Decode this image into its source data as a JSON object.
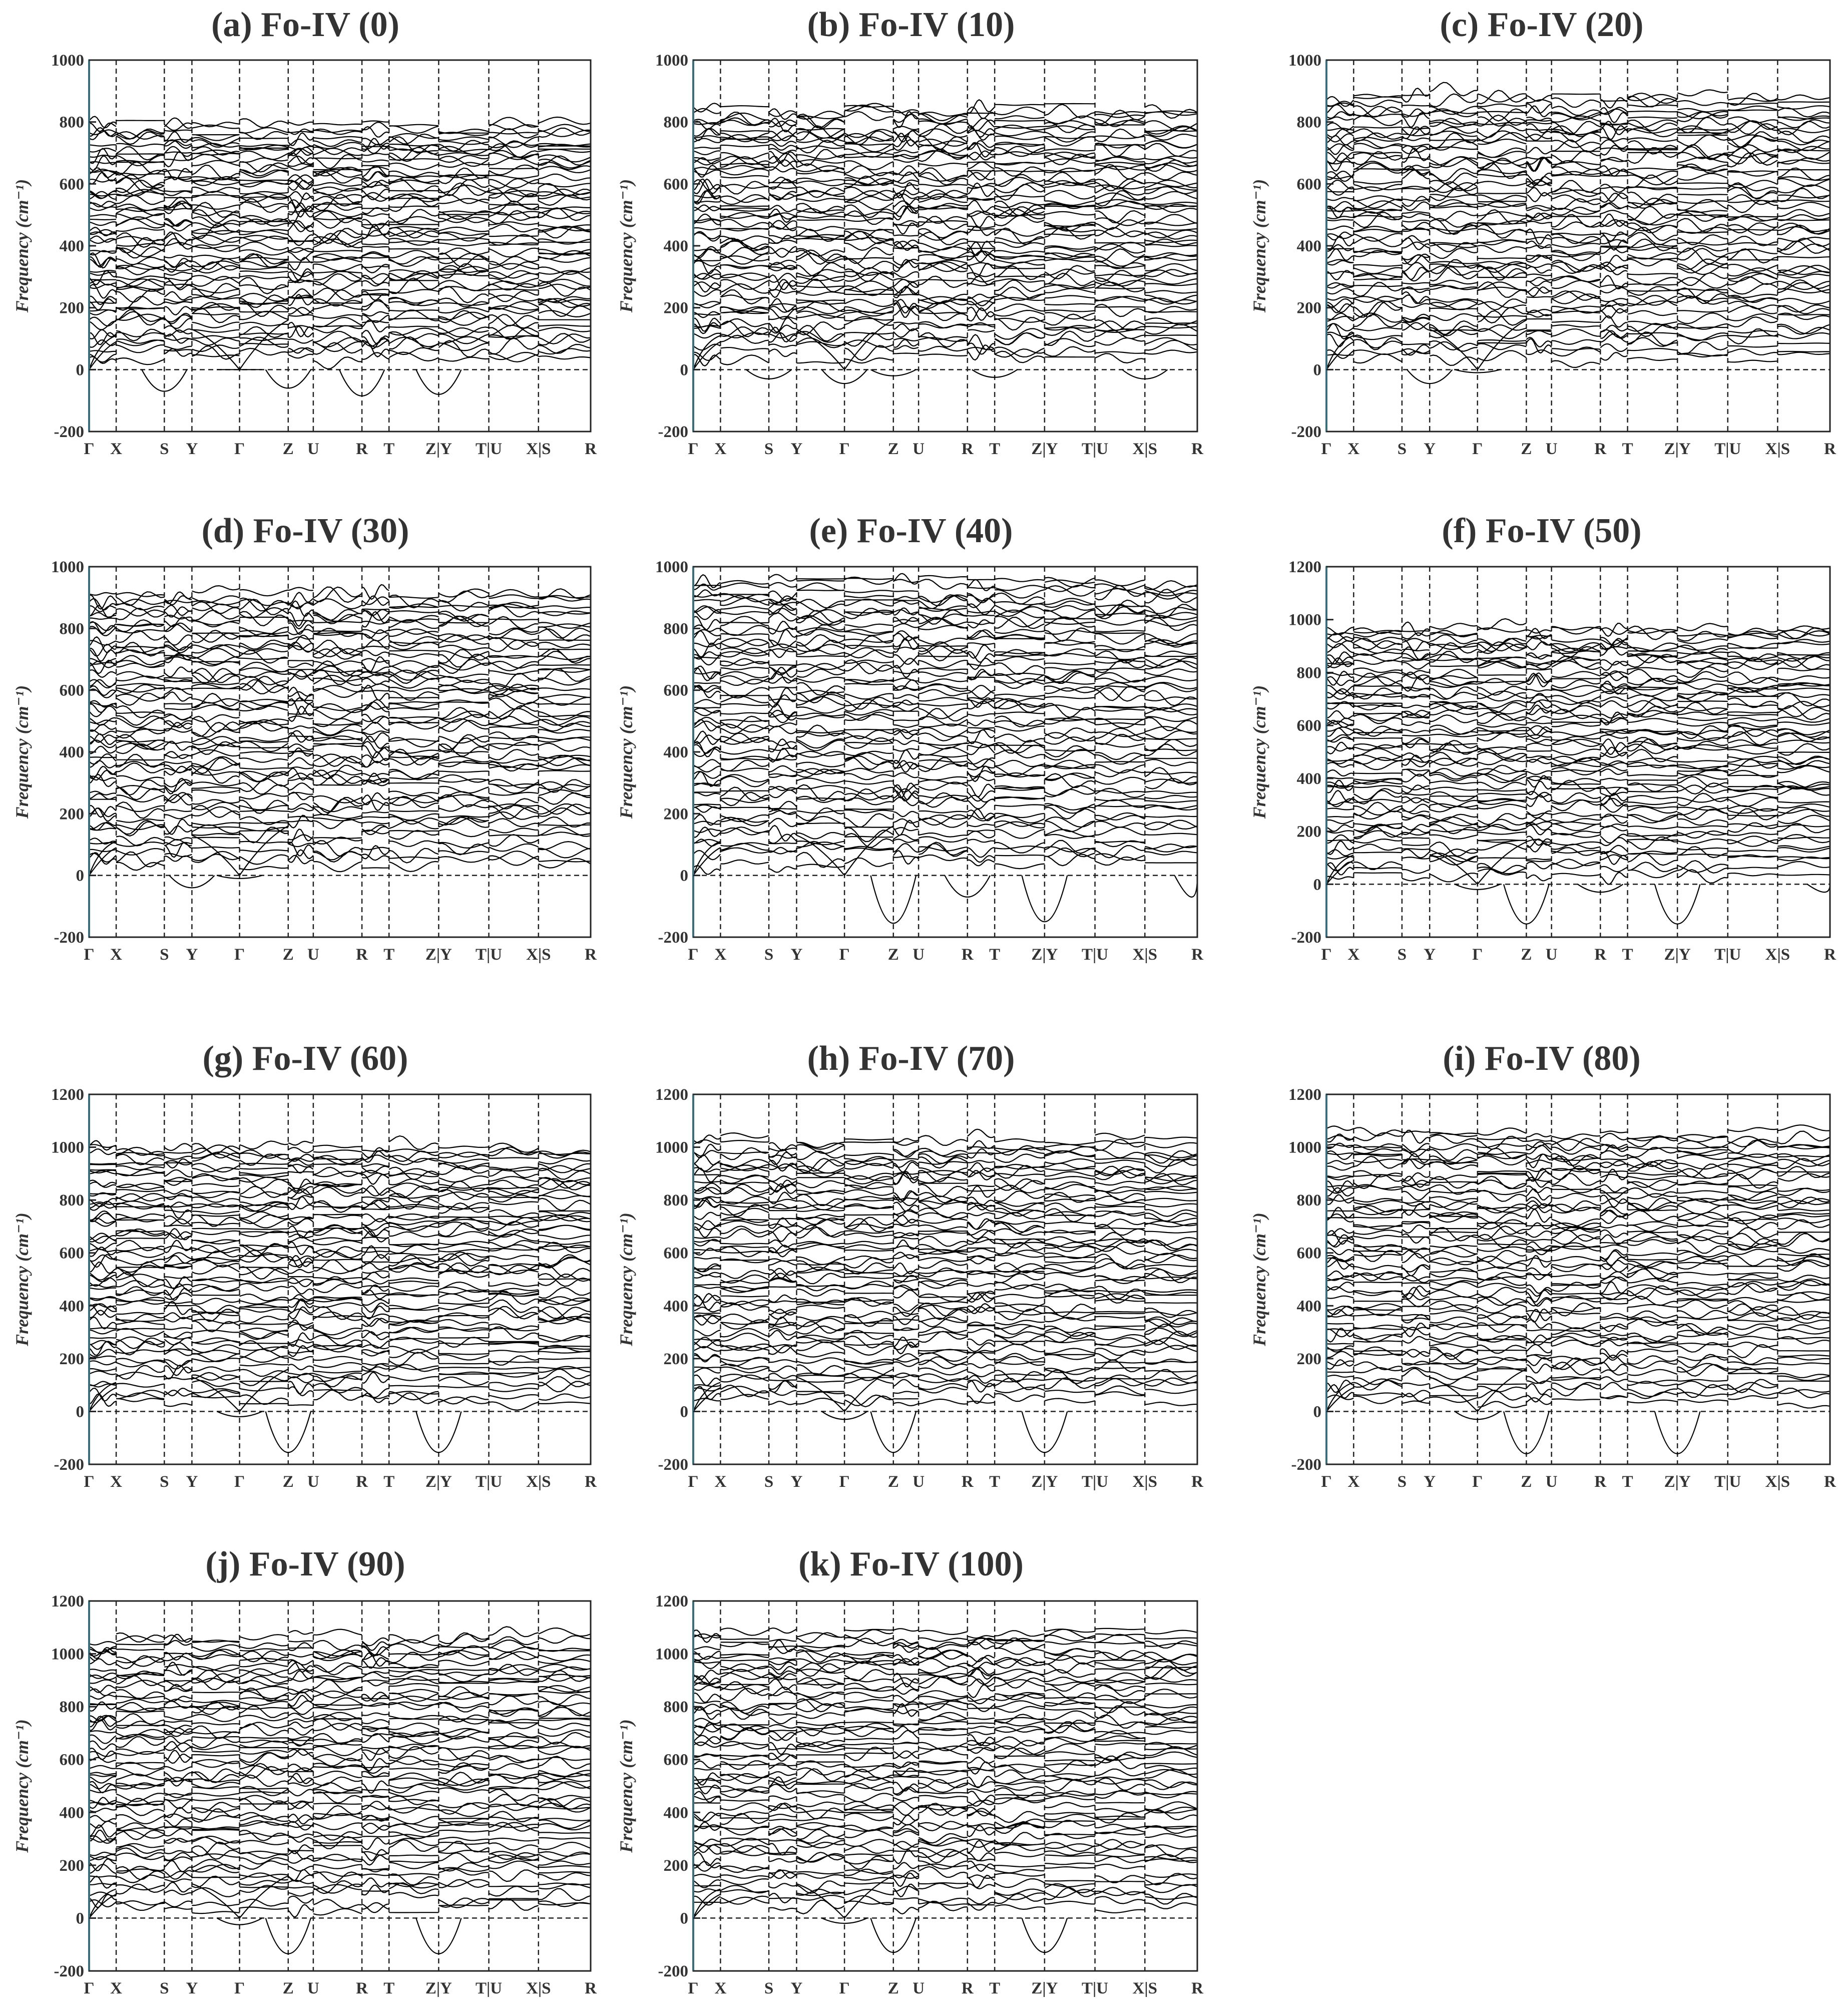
{
  "figure": {
    "kpath_labels": [
      "Γ",
      "X",
      "S",
      "Y",
      "Γ",
      "Z",
      "U",
      "R",
      "T",
      "Z|Y",
      "T|U",
      "X|S",
      "R"
    ],
    "kpath_positions": [
      0,
      0.054,
      0.15,
      0.205,
      0.3,
      0.397,
      0.447,
      0.544,
      0.598,
      0.697,
      0.797,
      0.896,
      1.0
    ],
    "ylabel": "Frequency (cm⁻¹)"
  },
  "chart_data": [
    {
      "type": "line",
      "title": "(a) Fo-IV (0)",
      "ylim": [
        -200,
        1000
      ],
      "yticks": [
        -200,
        0,
        200,
        400,
        600,
        800,
        1000
      ],
      "max_freq": 810,
      "min_freq": -85,
      "soft_modes": [
        [
          0.15,
          -70
        ],
        [
          0.3,
          0
        ],
        [
          0.397,
          -60
        ],
        [
          0.544,
          -85
        ],
        [
          0.697,
          -80
        ]
      ]
    },
    {
      "type": "line",
      "title": "(b) Fo-IV (10)",
      "ylim": [
        -200,
        1000
      ],
      "yticks": [
        -200,
        0,
        200,
        400,
        600,
        800,
        1000
      ],
      "max_freq": 860,
      "min_freq": -45,
      "soft_modes": [
        [
          0.15,
          -30
        ],
        [
          0.3,
          -45
        ],
        [
          0.397,
          -20
        ],
        [
          0.598,
          -25
        ],
        [
          0.896,
          -30
        ]
      ]
    },
    {
      "type": "line",
      "title": "(c) Fo-IV (20)",
      "ylim": [
        -200,
        1000
      ],
      "yticks": [
        -200,
        0,
        200,
        400,
        600,
        800,
        1000
      ],
      "max_freq": 900,
      "min_freq": -45,
      "soft_modes": [
        [
          0.205,
          -45
        ],
        [
          0.3,
          -10
        ]
      ]
    },
    {
      "type": "line",
      "title": "(d) Fo-IV (30)",
      "ylim": [
        -200,
        1000
      ],
      "yticks": [
        -200,
        0,
        200,
        400,
        600,
        800,
        1000
      ],
      "max_freq": 930,
      "min_freq": -40,
      "soft_modes": [
        [
          0.205,
          -40
        ],
        [
          0.3,
          -10
        ]
      ]
    },
    {
      "type": "line",
      "title": "(e) Fo-IV (40)",
      "ylim": [
        -200,
        1000
      ],
      "yticks": [
        -200,
        0,
        200,
        400,
        600,
        800,
        1000
      ],
      "max_freq": 970,
      "min_freq": -155,
      "soft_modes": [
        [
          0.397,
          -155
        ],
        [
          0.544,
          -70
        ],
        [
          0.697,
          -150
        ],
        [
          1.0,
          -70
        ]
      ]
    },
    {
      "type": "line",
      "title": "(f) Fo-IV (50)",
      "ylim": [
        -200,
        1200
      ],
      "yticks": [
        -200,
        0,
        200,
        400,
        600,
        800,
        1000,
        1200
      ],
      "max_freq": 990,
      "min_freq": -150,
      "soft_modes": [
        [
          0.3,
          -20
        ],
        [
          0.397,
          -150
        ],
        [
          0.544,
          -30
        ],
        [
          0.697,
          -150
        ],
        [
          1.0,
          -30
        ]
      ]
    },
    {
      "type": "line",
      "title": "(g) Fo-IV (60)",
      "ylim": [
        -200,
        1200
      ],
      "yticks": [
        -200,
        0,
        200,
        400,
        600,
        800,
        1000,
        1200
      ],
      "max_freq": 1020,
      "min_freq": -155,
      "soft_modes": [
        [
          0.3,
          -20
        ],
        [
          0.397,
          -155
        ],
        [
          0.697,
          -155
        ]
      ]
    },
    {
      "type": "line",
      "title": "(h) Fo-IV (70)",
      "ylim": [
        -200,
        1200
      ],
      "yticks": [
        -200,
        0,
        200,
        400,
        600,
        800,
        1000,
        1200
      ],
      "max_freq": 1040,
      "min_freq": -155,
      "soft_modes": [
        [
          0.3,
          -30
        ],
        [
          0.397,
          -155
        ],
        [
          0.697,
          -155
        ]
      ]
    },
    {
      "type": "line",
      "title": "(i) Fo-IV (80)",
      "ylim": [
        -200,
        1200
      ],
      "yticks": [
        -200,
        0,
        200,
        400,
        600,
        800,
        1000,
        1200
      ],
      "max_freq": 1070,
      "min_freq": -160,
      "soft_modes": [
        [
          0.3,
          -30
        ],
        [
          0.397,
          -160
        ],
        [
          0.697,
          -160
        ]
      ]
    },
    {
      "type": "line",
      "title": "(j) Fo-IV (90)",
      "ylim": [
        -200,
        1200
      ],
      "yticks": [
        -200,
        0,
        200,
        400,
        600,
        800,
        1000,
        1200
      ],
      "max_freq": 1080,
      "min_freq": -135,
      "soft_modes": [
        [
          0.3,
          -25
        ],
        [
          0.397,
          -135
        ],
        [
          0.697,
          -135
        ]
      ]
    },
    {
      "type": "line",
      "title": "(k) Fo-IV (100)",
      "ylim": [
        -200,
        1200
      ],
      "yticks": [
        -200,
        0,
        200,
        400,
        600,
        800,
        1000,
        1200
      ],
      "max_freq": 1100,
      "min_freq": -130,
      "soft_modes": [
        [
          0.3,
          -20
        ],
        [
          0.397,
          -130
        ],
        [
          0.697,
          -130
        ]
      ]
    }
  ]
}
